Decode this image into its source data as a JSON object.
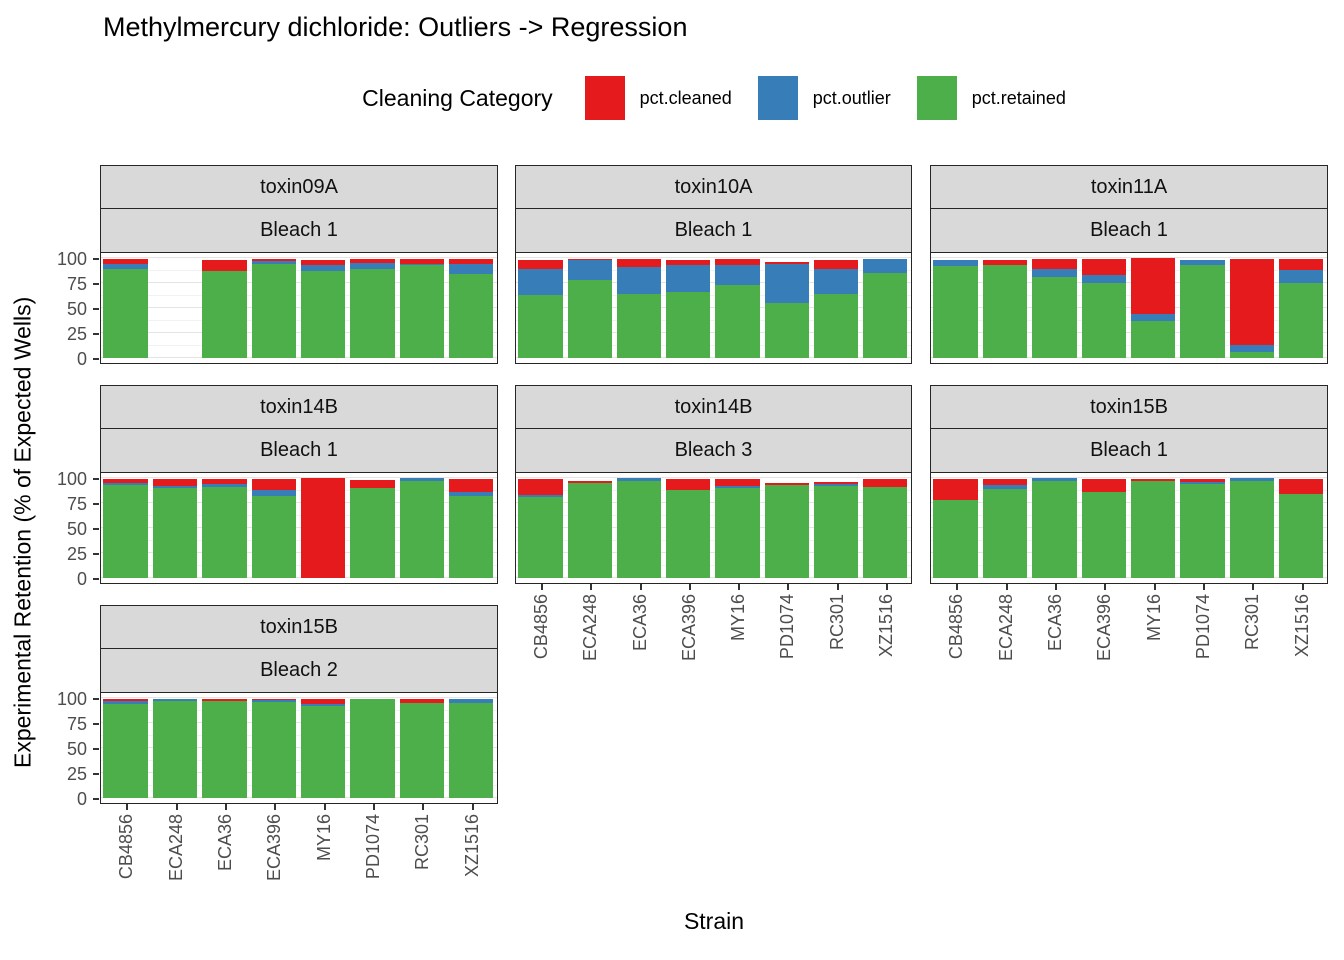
{
  "title": "Methylmercury dichloride: Outliers -> Regression",
  "legend": {
    "title": "Cleaning Category",
    "items": [
      {
        "label": "pct.cleaned",
        "color": "#E41A1C"
      },
      {
        "label": "pct.outlier",
        "color": "#377EB8"
      },
      {
        "label": "pct.retained",
        "color": "#4DAF4A"
      }
    ]
  },
  "axes": {
    "y_label": "Experimental Retention (% of Expected Wells)",
    "x_label": "Strain",
    "y_ticks": [
      100,
      75,
      50,
      25,
      0
    ]
  },
  "chart_data": {
    "type": "bar",
    "stacked": true,
    "ylim": [
      0,
      100
    ],
    "grid": "on",
    "legend_position": "top",
    "categories": [
      "CB4856",
      "ECA248",
      "ECA36",
      "ECA396",
      "MY16",
      "PD1074",
      "RC301",
      "XZ1516"
    ],
    "stack_order_top_to_bottom": [
      "pct.cleaned",
      "pct.outlier",
      "pct.retained"
    ],
    "colors": {
      "pct.cleaned": "#E41A1C",
      "pct.outlier": "#377EB8",
      "pct.retained": "#4DAF4A"
    },
    "panels": [
      {
        "toxin": "toxin09A",
        "bleach": "Bleach 1",
        "row": 0,
        "col": 0,
        "series": [
          {
            "name": "pct.cleaned",
            "values": [
              5,
              null,
              11,
              2,
              5,
              4,
              5,
              5
            ]
          },
          {
            "name": "pct.outlier",
            "values": [
              5,
              null,
              0,
              3,
              6,
              6,
              1,
              10
            ]
          },
          {
            "name": "pct.retained",
            "values": [
              89,
              null,
              87,
              94,
              87,
              89,
              93,
              84
            ]
          }
        ]
      },
      {
        "toxin": "toxin10A",
        "bleach": "Bleach 1",
        "row": 0,
        "col": 1,
        "series": [
          {
            "name": "pct.cleaned",
            "values": [
              9,
              1,
              8,
              5,
              6,
              2,
              9,
              0
            ]
          },
          {
            "name": "pct.outlier",
            "values": [
              26,
              20,
              27,
              27,
              20,
              39,
              25,
              14
            ]
          },
          {
            "name": "pct.retained",
            "values": [
              63,
              78,
              64,
              66,
              73,
              55,
              64,
              85
            ]
          }
        ]
      },
      {
        "toxin": "toxin11A",
        "bleach": "Bleach 1",
        "row": 0,
        "col": 2,
        "series": [
          {
            "name": "pct.cleaned",
            "values": [
              0,
              5,
              10,
              16,
              56,
              0,
              86,
              11
            ]
          },
          {
            "name": "pct.outlier",
            "values": [
              6,
              0,
              8,
              8,
              7,
              5,
              7,
              13
            ]
          },
          {
            "name": "pct.retained",
            "values": [
              92,
              93,
              81,
              75,
              37,
              93,
              6,
              75
            ]
          }
        ]
      },
      {
        "toxin": "toxin14B",
        "bleach": "Bleach 1",
        "row": 1,
        "col": 0,
        "series": [
          {
            "name": "pct.cleaned",
            "values": [
              4,
              7,
              5,
              11,
              100,
              8,
              0,
              13
            ]
          },
          {
            "name": "pct.outlier",
            "values": [
              2,
              2,
              3,
              6,
              0,
              0,
              3,
              4
            ]
          },
          {
            "name": "pct.retained",
            "values": [
              93,
              90,
              91,
              82,
              0,
              90,
              97,
              82
            ]
          }
        ]
      },
      {
        "toxin": "toxin14B",
        "bleach": "Bleach 3",
        "row": 1,
        "col": 1,
        "series": [
          {
            "name": "pct.cleaned",
            "values": [
              16,
              2,
              0,
              11,
              7,
              2,
              2,
              8
            ]
          },
          {
            "name": "pct.outlier",
            "values": [
              2,
              0,
              3,
              0,
              2,
              0,
              2,
              0
            ]
          },
          {
            "name": "pct.retained",
            "values": [
              81,
              95,
              97,
              88,
              90,
              93,
              92,
              91
            ]
          }
        ]
      },
      {
        "toxin": "toxin15B",
        "bleach": "Bleach 1",
        "row": 1,
        "col": 2,
        "series": [
          {
            "name": "pct.cleaned",
            "values": [
              21,
              6,
              0,
              13,
              2,
              3,
              0,
              15
            ]
          },
          {
            "name": "pct.outlier",
            "values": [
              0,
              4,
              3,
              0,
              0,
              2,
              3,
              0
            ]
          },
          {
            "name": "pct.retained",
            "values": [
              78,
              89,
              97,
              86,
              97,
              94,
              97,
              84
            ]
          }
        ]
      },
      {
        "toxin": "toxin15B",
        "bleach": "Bleach 2",
        "row": 2,
        "col": 0,
        "series": [
          {
            "name": "pct.cleaned",
            "values": [
              2,
              0,
              2,
              1,
              5,
              0,
              4,
              0
            ]
          },
          {
            "name": "pct.outlier",
            "values": [
              3,
              2,
              0,
              2,
              2,
              0,
              0,
              4
            ]
          },
          {
            "name": "pct.retained",
            "values": [
              94,
              97,
              97,
              96,
              92,
              99,
              95,
              95
            ]
          }
        ]
      }
    ]
  }
}
